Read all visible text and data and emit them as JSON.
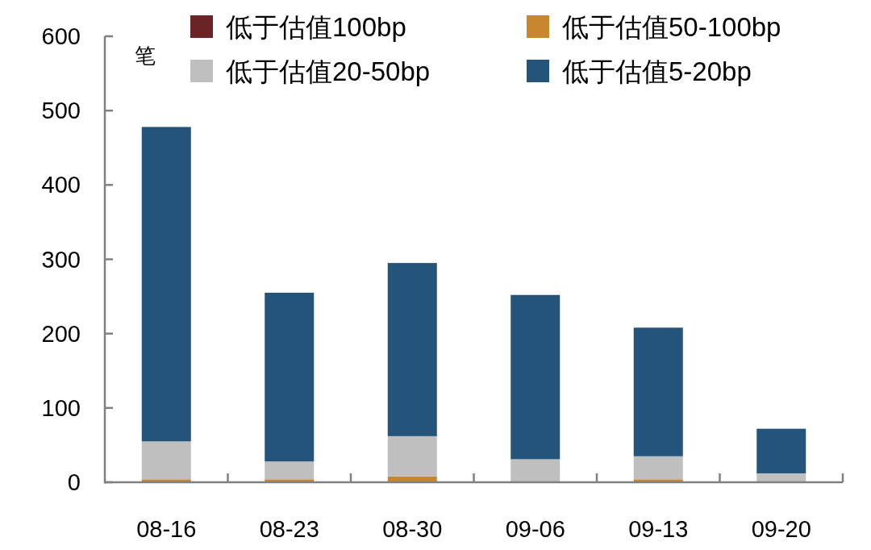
{
  "chart_data": {
    "type": "bar",
    "stacked": true,
    "ylabel": "笔",
    "categories": [
      "08-16",
      "08-23",
      "08-30",
      "09-06",
      "09-13",
      "09-20"
    ],
    "series": [
      {
        "name": "低于估值100bp",
        "color": "#6b2326",
        "values": [
          0,
          0,
          0,
          0,
          0,
          0
        ]
      },
      {
        "name": "低于估值50-100bp",
        "color": "#c8862f",
        "values": [
          4,
          4,
          8,
          1,
          4,
          0
        ]
      },
      {
        "name": "低于估值20-50bp",
        "color": "#bfbfbf",
        "values": [
          51,
          24,
          54,
          30,
          31,
          12
        ]
      },
      {
        "name": "低于估值5-20bp",
        "color": "#245479",
        "values": [
          423,
          227,
          233,
          221,
          173,
          60
        ]
      }
    ],
    "ylim": [
      0,
      600
    ],
    "yticks": [
      0,
      100,
      200,
      300,
      400,
      500,
      600
    ],
    "grid": false,
    "legend": "top"
  }
}
